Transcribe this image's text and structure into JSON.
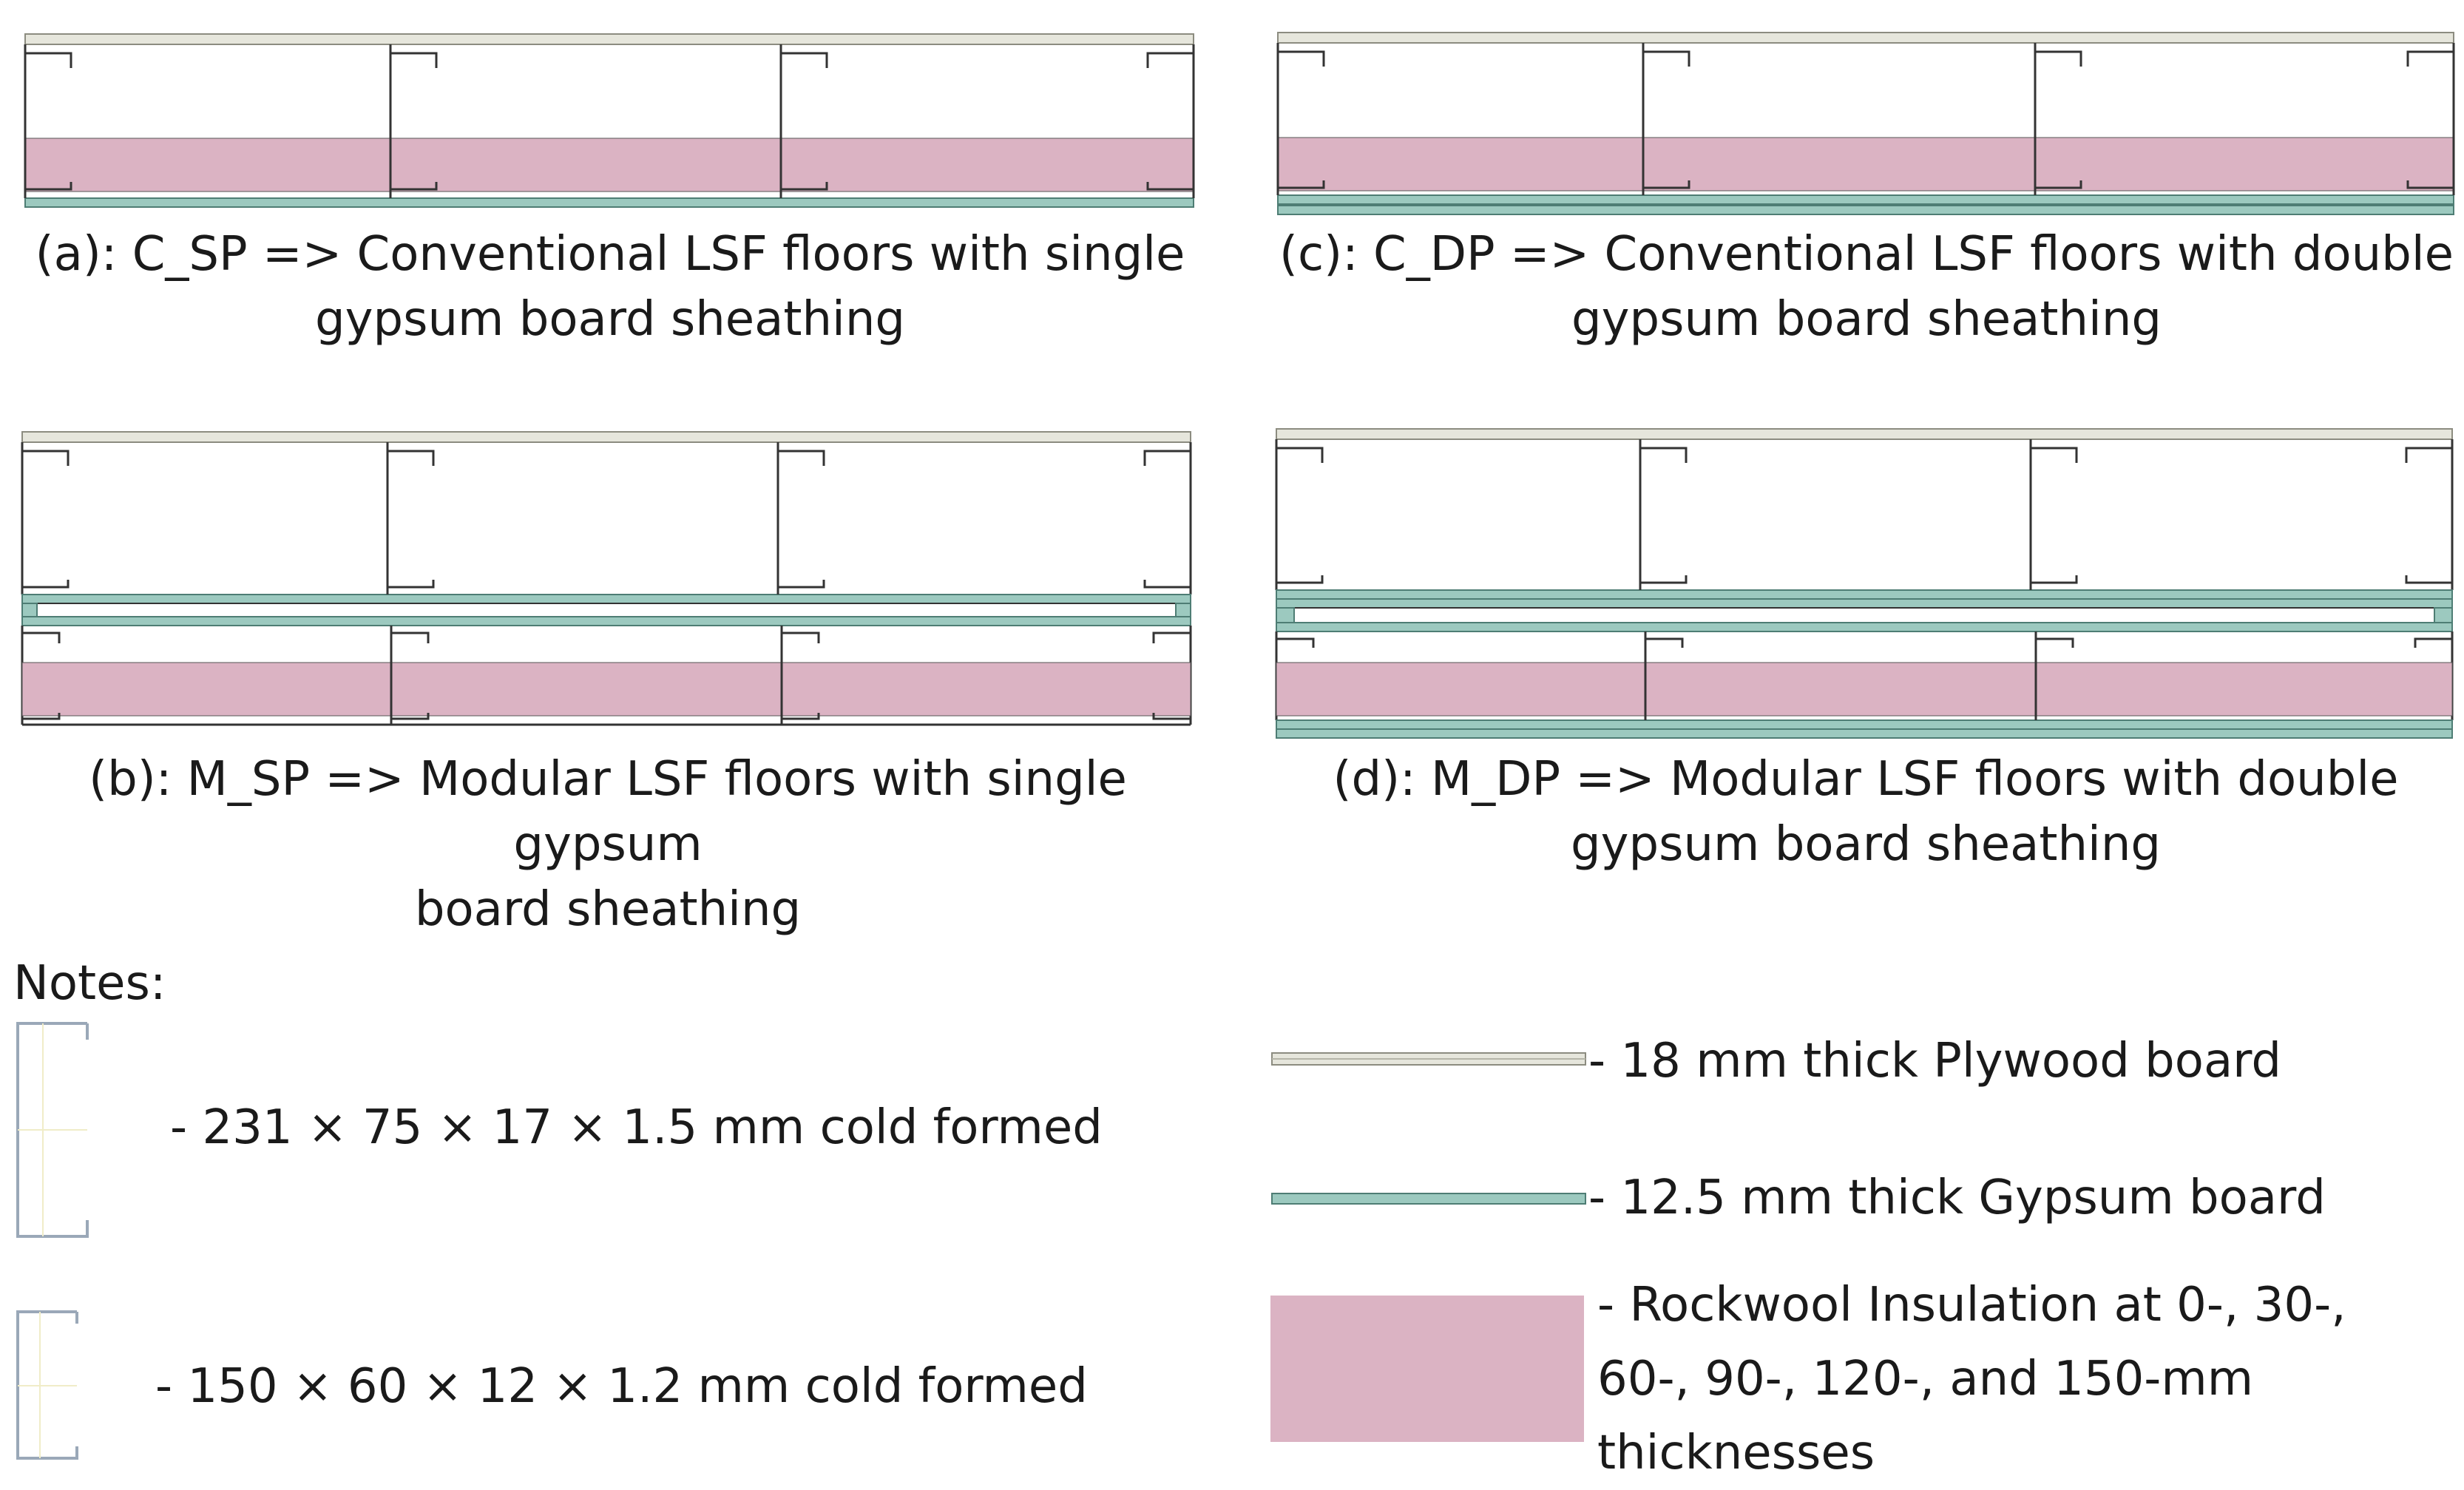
{
  "panels": [
    {
      "id": "a",
      "caption_line1": "(a): C_SP => Conventional LSF floors with single",
      "caption_line2": "gypsum board sheathing"
    },
    {
      "id": "c",
      "caption_line1": "(c): C_DP => Conventional LSF floors with double",
      "caption_line2": "gypsum board sheathing"
    },
    {
      "id": "b",
      "caption_line1": "(b): M_SP => Modular LSF floors with single gypsum",
      "caption_line2": "board sheathing"
    },
    {
      "id": "d",
      "caption_line1": "(d): M_DP => Modular LSF floors with double",
      "caption_line2": "gypsum board sheathing"
    }
  ],
  "notes": {
    "title": "Notes:",
    "stud_231": "- 231 × 75 × 17 × 1.5 mm cold formed",
    "stud_150": "- 150 × 60 × 12 × 1.2 mm cold formed",
    "plywood": "- 18 mm thick Plywood board",
    "gypsum": "- 12.5 mm thick Gypsum board",
    "rockwool_line1": "- Rockwool Insulation at 0-, 30-,",
    "rockwool_line2": "60-, 90-, 120-, and 150-mm",
    "rockwool_line3": "thicknesses"
  },
  "colors": {
    "plywood": "#e6e6dc",
    "gypsum": "#9cc9bf",
    "insulation": "#dbb3c3",
    "steel": "#333333",
    "legend_steel": "#9aa8b8"
  }
}
